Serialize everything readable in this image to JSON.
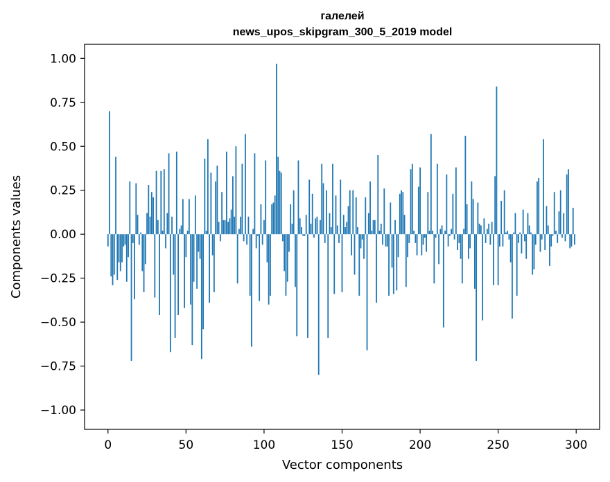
{
  "chart_data": {
    "type": "bar",
    "title": "галелей",
    "subtitle": "news_upos_skipgram_300_5_2019 model",
    "xlabel": "Vector components",
    "ylabel": "Components values",
    "xlim": [
      -15,
      315
    ],
    "ylim": [
      -1.11,
      1.08
    ],
    "xticks": [
      0,
      50,
      100,
      150,
      200,
      250,
      300
    ],
    "xtick_labels": [
      "0",
      "50",
      "100",
      "150",
      "200",
      "250",
      "300"
    ],
    "yticks": [
      1.0,
      0.75,
      0.5,
      0.25,
      0.0,
      -0.25,
      -0.5,
      -0.75,
      -1.0
    ],
    "ytick_labels": [
      "1.00",
      "0.75",
      "0.50",
      "0.25",
      "0.00",
      "−0.25",
      "−0.50",
      "−0.75",
      "−1.00"
    ],
    "grid": false,
    "bar_color": "#1f77b4",
    "values": [
      -0.07,
      0.7,
      -0.24,
      -0.29,
      -0.23,
      0.44,
      -0.26,
      -0.16,
      -0.21,
      -0.16,
      -0.07,
      -0.06,
      -0.27,
      -0.13,
      0.3,
      -0.72,
      -0.05,
      -0.37,
      0.29,
      0.11,
      -0.06,
      0.01,
      -0.21,
      -0.33,
      -0.17,
      0.12,
      0.28,
      0.1,
      0.24,
      0.21,
      -0.36,
      0.36,
      0.08,
      -0.46,
      0.36,
      0.02,
      0.37,
      -0.08,
      0.12,
      0.46,
      -0.67,
      0.1,
      -0.23,
      -0.59,
      0.47,
      -0.46,
      0.03,
      0.05,
      0.2,
      -0.42,
      -0.13,
      0.02,
      0.2,
      -0.4,
      -0.63,
      -0.27,
      0.22,
      -0.31,
      -0.1,
      -0.14,
      -0.71,
      -0.54,
      0.43,
      0.02,
      0.54,
      -0.39,
      0.35,
      -0.12,
      -0.33,
      0.3,
      0.39,
      0.07,
      -0.04,
      0.24,
      0.08,
      0.08,
      0.47,
      0.07,
      0.09,
      0.14,
      0.33,
      0.1,
      0.5,
      -0.28,
      0.03,
      0.1,
      0.4,
      -0.04,
      0.57,
      -0.06,
      0.1,
      -0.35,
      -0.64,
      0.03,
      0.46,
      -0.08,
      -0.01,
      -0.38,
      0.17,
      -0.06,
      0.08,
      0.42,
      -0.16,
      -0.4,
      -0.35,
      0.17,
      0.18,
      0.22,
      0.97,
      0.44,
      0.36,
      0.35,
      -0.04,
      -0.21,
      -0.35,
      -0.27,
      -0.1,
      0.17,
      0.06,
      0.25,
      -0.3,
      -0.58,
      0.42,
      0.09,
      0.04,
      -0.01,
      -0.01,
      0.11,
      -0.59,
      0.31,
      0.06,
      0.23,
      -0.02,
      0.09,
      0.1,
      -0.8,
      0.08,
      0.4,
      0.29,
      -0.05,
      0.25,
      -0.59,
      0.12,
      0.04,
      0.4,
      -0.34,
      0.22,
      0.05,
      -0.05,
      0.31,
      -0.33,
      0.11,
      0.04,
      0.07,
      0.16,
      0.25,
      -0.12,
      0.25,
      -0.23,
      0.21,
      0.04,
      -0.35,
      -0.08,
      -0.03,
      -0.14,
      0.21,
      -0.66,
      0.12,
      0.3,
      0.02,
      0.08,
      0.08,
      -0.39,
      0.45,
      0.02,
      0.06,
      -0.06,
      0.26,
      -0.07,
      -0.07,
      -0.35,
      0.18,
      -0.19,
      -0.34,
      0.08,
      -0.32,
      -0.13,
      0.23,
      0.25,
      0.24,
      0.11,
      -0.3,
      -0.13,
      -0.05,
      0.37,
      0.4,
      0.02,
      -0.05,
      -0.12,
      0.27,
      0.38,
      -0.12,
      -0.06,
      -0.02,
      -0.1,
      0.24,
      0.02,
      0.57,
      0.02,
      -0.28,
      -0.02,
      0.4,
      -0.17,
      0.03,
      0.05,
      -0.53,
      0.02,
      0.34,
      -0.07,
      -0.01,
      0.03,
      0.23,
      -0.03,
      0.38,
      -0.09,
      -0.05,
      -0.14,
      -0.28,
      0.03,
      0.56,
      0.17,
      -0.14,
      -0.08,
      0.3,
      0.2,
      -0.31,
      -0.72,
      0.18,
      0.06,
      0.05,
      -0.49,
      0.09,
      -0.05,
      0.03,
      0.06,
      -0.06,
      0.07,
      -0.29,
      0.33,
      0.84,
      -0.29,
      -0.07,
      0.19,
      -0.07,
      0.25,
      0.01,
      0.02,
      -0.03,
      -0.16,
      -0.48,
      0.01,
      0.12,
      -0.35,
      -0.05,
      0.01,
      -0.11,
      0.14,
      -0.04,
      -0.14,
      0.12,
      0.05,
      0.01,
      -0.23,
      -0.2,
      -0.06,
      0.3,
      0.32,
      -0.1,
      -0.03,
      0.54,
      -0.09,
      0.16,
      0.05,
      -0.18,
      -0.07,
      -0.01,
      0.24,
      0.02,
      -0.05,
      0.13,
      0.25,
      -0.02,
      0.12,
      -0.04,
      0.34,
      0.37,
      -0.08,
      -0.07,
      0.15,
      -0.06
    ]
  }
}
